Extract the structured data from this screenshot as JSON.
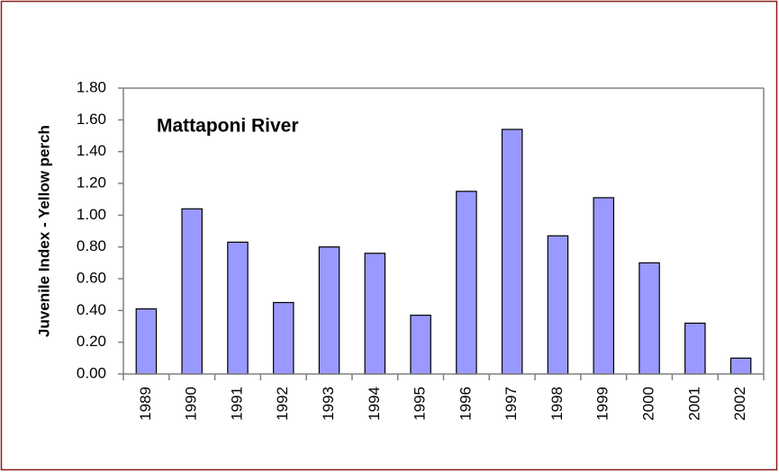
{
  "chart_data": {
    "type": "bar",
    "annotation": "Mattaponi River",
    "y_label": "Juvenile Index - Yellow perch",
    "categories": [
      "1989",
      "1990",
      "1991",
      "1992",
      "1993",
      "1994",
      "1995",
      "1996",
      "1997",
      "1998",
      "1999",
      "2000",
      "2001",
      "2002"
    ],
    "values": [
      0.41,
      1.04,
      0.83,
      0.45,
      0.8,
      0.76,
      0.37,
      1.15,
      1.54,
      0.87,
      1.11,
      0.7,
      0.32,
      0.1
    ],
    "color": "#9999ff",
    "ylim": [
      0,
      1.8
    ],
    "yticks": [
      {
        "value": 0,
        "label": "0.00"
      },
      {
        "value": 0.2,
        "label": "0.20"
      },
      {
        "value": 0.4,
        "label": "0.40"
      },
      {
        "value": 0.6,
        "label": "0.60"
      },
      {
        "value": 0.8,
        "label": "0.80"
      },
      {
        "value": 1,
        "label": "1.00"
      },
      {
        "value": 1.2,
        "label": "1.20"
      },
      {
        "value": 1.4,
        "label": "1.40"
      },
      {
        "value": 1.6,
        "label": "1.60"
      },
      {
        "value": 1.8,
        "label": "1.80"
      }
    ],
    "grid": false
  }
}
